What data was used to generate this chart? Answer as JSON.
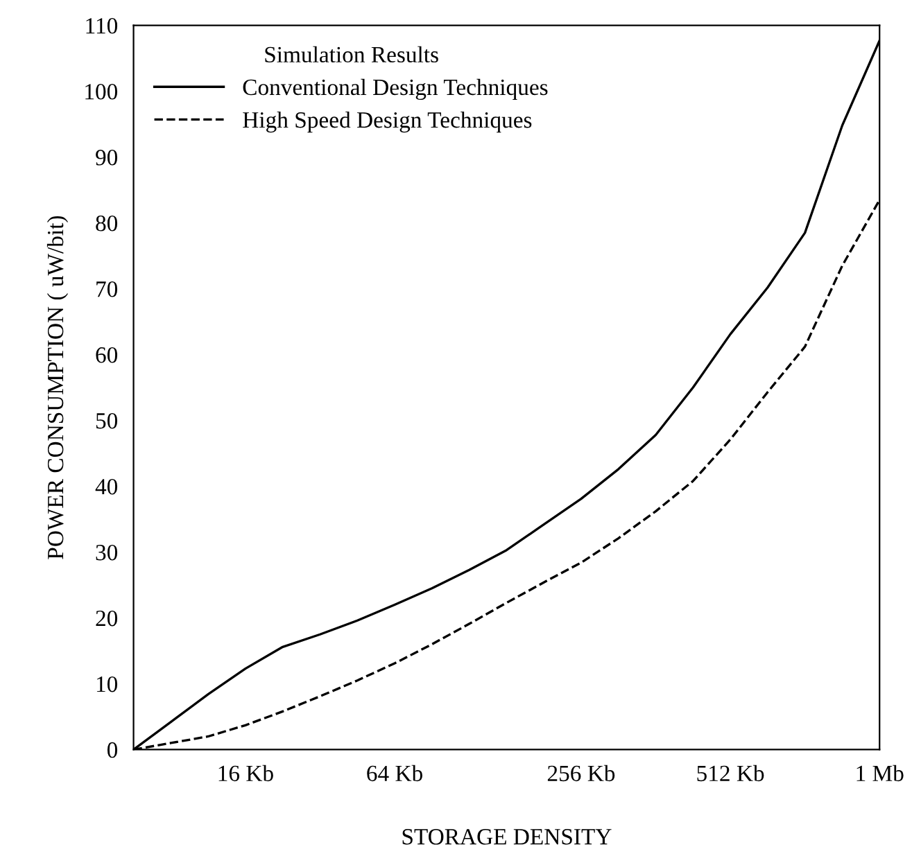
{
  "chart_data": {
    "type": "line",
    "xlabel": "STORAGE DENSITY",
    "ylabel": "POWER CONSUMPTION ( uW/bit)",
    "legend_title": "Simulation Results",
    "legend": "top left",
    "grid": false,
    "marker": "none",
    "categories": [
      null,
      null,
      null,
      "16 Kb",
      null,
      null,
      null,
      "64 Kb",
      null,
      null,
      null,
      null,
      "256 Kb",
      null,
      null,
      null,
      "512 Kb",
      null,
      null,
      null,
      "1 Mb"
    ],
    "ylim": [
      0,
      110
    ],
    "yticks": [
      0,
      10,
      20,
      30,
      40,
      50,
      60,
      70,
      80,
      90,
      100,
      110
    ],
    "series": [
      {
        "name": "Conventional Design Techniques",
        "color": "#000000",
        "line_style": "solid",
        "values": [
          0,
          4.2,
          8.4,
          12.3,
          15.6,
          17.5,
          19.6,
          22.0,
          24.5,
          27.3,
          30.3,
          34.2,
          38.1,
          42.6,
          47.8,
          55.0,
          63.1,
          70.2,
          78.5,
          94.8,
          107.7
        ]
      },
      {
        "name": "High Speed Design Techniques",
        "color": "#000000",
        "line_style": "dashed",
        "values": [
          0,
          1.0,
          2.0,
          3.7,
          5.8,
          8.1,
          10.5,
          13.1,
          16.0,
          19.1,
          22.3,
          25.4,
          28.4,
          32.1,
          36.2,
          40.8,
          47.1,
          54.3,
          61.2,
          73.5,
          83.5
        ]
      }
    ]
  }
}
